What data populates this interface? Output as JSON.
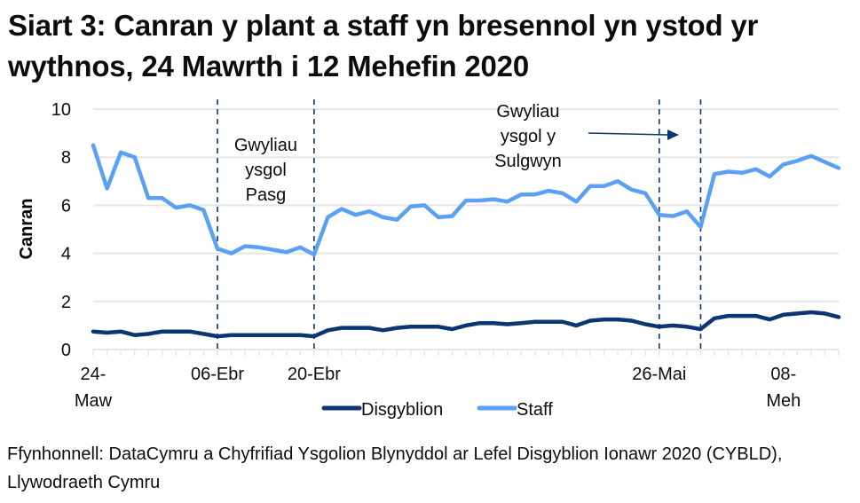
{
  "title": "Siart 3: Canran y plant a staff yn bresennol yn ystod yr wythnos, 24 Mawrth i 12 Mehefin 2020",
  "source": "Ffynhonnell: DataCymru a Chyfrifiad Ysgolion Blynyddol ar Lefel Disgyblion Ionawr 2020 (CYBLD), Llywodraeth Cymru",
  "colors": {
    "disgyblion": "#0c3573",
    "staff": "#5aa1f5",
    "grid": "#e6e6e6",
    "marker": "#0c3573"
  },
  "chart_data": {
    "type": "line",
    "title": "Siart 3: Canran y plant a staff yn bresennol yn ystod yr wythnos, 24 Mawrth i 12 Mehefin 2020",
    "xlabel": "",
    "ylabel": "Canran",
    "ylim": [
      0,
      10
    ],
    "yticks": [
      0,
      2,
      4,
      6,
      8,
      10
    ],
    "grid": true,
    "legend_position": "bottom",
    "x_count": 55,
    "x_tick_labels": [
      {
        "index": 0,
        "lines": [
          "24-",
          "Maw"
        ]
      },
      {
        "index": 9,
        "lines": [
          "06-Ebr"
        ]
      },
      {
        "index": 16,
        "lines": [
          "20-Ebr"
        ]
      },
      {
        "index": 41,
        "lines": [
          "26-Mai"
        ]
      },
      {
        "index": 50,
        "lines": [
          "08-",
          "Meh"
        ]
      }
    ],
    "series": [
      {
        "name": "Disgyblion",
        "color": "#0c3573",
        "values": [
          0.75,
          0.7,
          0.75,
          0.6,
          0.65,
          0.75,
          0.75,
          0.75,
          0.65,
          0.55,
          0.6,
          0.6,
          0.6,
          0.6,
          0.6,
          0.6,
          0.55,
          0.8,
          0.9,
          0.9,
          0.9,
          0.8,
          0.9,
          0.95,
          0.95,
          0.95,
          0.85,
          1.0,
          1.1,
          1.1,
          1.05,
          1.1,
          1.15,
          1.15,
          1.15,
          1.0,
          1.2,
          1.25,
          1.25,
          1.2,
          1.05,
          0.95,
          1.0,
          0.95,
          0.85,
          1.3,
          1.4,
          1.4,
          1.4,
          1.25,
          1.45,
          1.5,
          1.55,
          1.5,
          1.35
        ]
      },
      {
        "name": "Staff",
        "color": "#5aa1f5",
        "values": [
          8.5,
          6.7,
          8.2,
          8.0,
          6.3,
          6.3,
          5.9,
          6.0,
          5.8,
          4.2,
          4.0,
          4.3,
          4.25,
          4.15,
          4.05,
          4.25,
          3.95,
          5.5,
          5.85,
          5.6,
          5.75,
          5.5,
          5.4,
          5.95,
          6.0,
          5.5,
          5.55,
          6.2,
          6.2,
          6.25,
          6.15,
          6.45,
          6.45,
          6.6,
          6.5,
          6.15,
          6.8,
          6.8,
          7.0,
          6.65,
          6.5,
          5.6,
          5.55,
          5.75,
          5.1,
          7.3,
          7.4,
          7.35,
          7.5,
          7.2,
          7.7,
          7.85,
          8.05,
          7.8,
          7.55
        ]
      }
    ],
    "vertical_markers": [
      9,
      16,
      41,
      44
    ],
    "annotations": [
      {
        "text": [
          "Gwyliau",
          "ysgol",
          "Pasg"
        ],
        "between": [
          9,
          16
        ]
      },
      {
        "text": [
          "Gwyliau",
          "ysgol y",
          "Sulgwyn"
        ],
        "arrow_to": [
          41,
          44
        ]
      }
    ]
  }
}
